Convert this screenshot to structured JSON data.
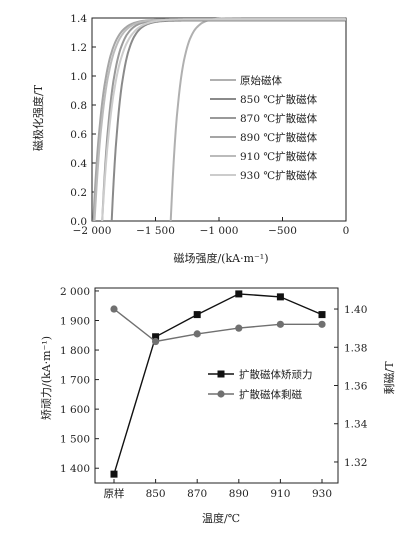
{
  "chart_data": [
    {
      "type": "line",
      "xlabel": "磁场强度/(kA·m⁻¹)",
      "ylabel": "磁极化强度/T",
      "xlim": [
        -2000,
        0
      ],
      "ylim": [
        0,
        1.4
      ],
      "x_ticks": [
        -2000,
        -1500,
        -1000,
        -500,
        0
      ],
      "x_tick_labels": [
        "−2 000",
        "−1 500",
        "−1 000",
        "−500",
        "0"
      ],
      "y_ticks": [
        0,
        0.2,
        0.4,
        0.6,
        0.8,
        1.0,
        1.2,
        1.4
      ],
      "y_tick_labels": [
        "0.0",
        "0.2",
        "0.4",
        "0.6",
        "0.8",
        "1.0",
        "1.2",
        "1.4"
      ],
      "legend_position": "center-right",
      "series": [
        {
          "name": "原始磁体",
          "color": "#b0b0b0",
          "hcj": -1380,
          "jr": 1.4
        },
        {
          "name": "850 ℃扩散磁体",
          "color": "#8a8a8a",
          "hcj": -1845,
          "jr": 1.383
        },
        {
          "name": "870 ℃扩散磁体",
          "color": "#999999",
          "hcj": -1920,
          "jr": 1.387
        },
        {
          "name": "890 ℃扩散磁体",
          "color": "#a5a5a5",
          "hcj": -1990,
          "jr": 1.39
        },
        {
          "name": "910 ℃扩散磁体",
          "color": "#bbbbbb",
          "hcj": -1980,
          "jr": 1.392
        },
        {
          "name": "930 ℃扩散磁体",
          "color": "#cccccc",
          "hcj": -1920,
          "jr": 1.392
        }
      ]
    },
    {
      "type": "line",
      "xlabel": "温度/℃",
      "ylabel": "矫顽力/(kA·m⁻¹)",
      "y2label": "剩磁/T",
      "categories": [
        "原样",
        "850",
        "870",
        "890",
        "910",
        "930"
      ],
      "ylim": [
        1350,
        2010
      ],
      "y_ticks": [
        1400,
        1500,
        1600,
        1700,
        1800,
        1900,
        2000
      ],
      "y_tick_labels": [
        "1 400",
        "1 500",
        "1 600",
        "1 700",
        "1 800",
        "1 900",
        "2 000"
      ],
      "y2lim": [
        1.309,
        1.411
      ],
      "y2_ticks": [
        1.32,
        1.34,
        1.36,
        1.38,
        1.4
      ],
      "y2_tick_labels": [
        "1.32",
        "1.34",
        "1.36",
        "1.38",
        "1.40"
      ],
      "legend_position": "center-right",
      "series": [
        {
          "name": "扩散磁体矫顽力",
          "axis": "left",
          "marker": "square",
          "color": "#111111",
          "values": [
            1380,
            1845,
            1920,
            1990,
            1980,
            1920
          ]
        },
        {
          "name": "扩散磁体剩磁",
          "axis": "right",
          "marker": "circle",
          "color": "#707070",
          "values": [
            1.4,
            1.383,
            1.387,
            1.39,
            1.392,
            1.392
          ]
        }
      ]
    }
  ]
}
